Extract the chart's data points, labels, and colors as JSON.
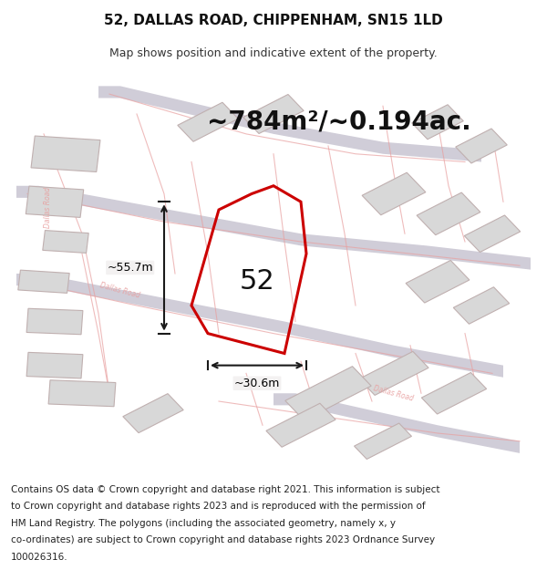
{
  "title": "52, DALLAS ROAD, CHIPPENHAM, SN15 1LD",
  "subtitle": "Map shows position and indicative extent of the property.",
  "area_label": "~784m²/~0.194ac.",
  "property_number": "52",
  "dim_width": "~30.6m",
  "dim_height": "~55.7m",
  "map_bg": "#f0eeee",
  "plot_line_color": "#cc0000",
  "road_line_color": "#e8a0a0",
  "dim_line_color": "#1a1a1a",
  "title_fontsize": 11,
  "subtitle_fontsize": 9,
  "footer_fontsize": 7.5,
  "footer_lines": [
    "Contains OS data © Crown copyright and database right 2021. This information is subject",
    "to Crown copyright and database rights 2023 and is reproduced with the permission of",
    "HM Land Registry. The polygons (including the associated geometry, namely x, y",
    "co-ordinates) are subject to Crown copyright and database rights 2023 Ordnance Survey",
    "100026316."
  ]
}
